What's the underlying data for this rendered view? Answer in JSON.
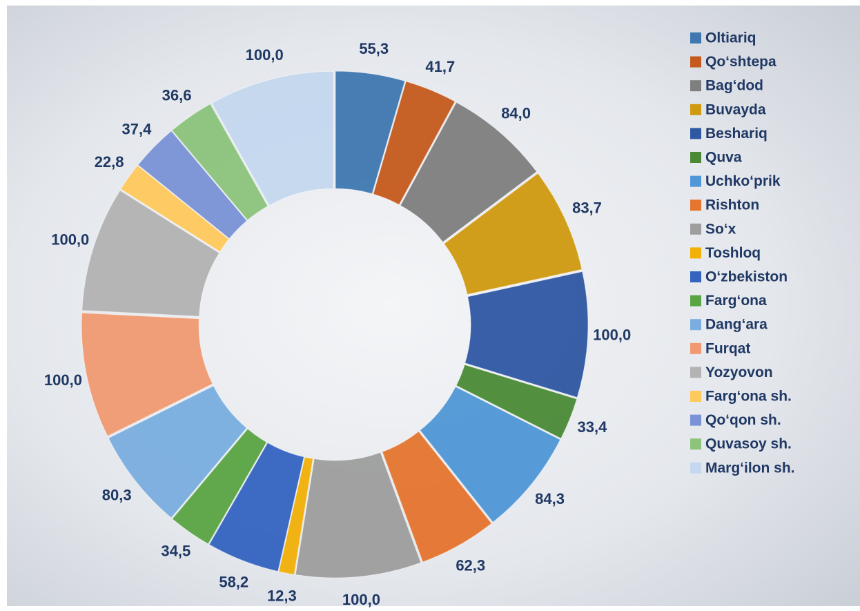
{
  "chart_data": {
    "type": "pie",
    "donut": true,
    "categories": [
      "Oltiariq",
      "Qo‘shtepa",
      "Bag‘dod",
      "Buvayda",
      "Beshariq",
      "Quva",
      "Uchko‘prik",
      "Rishton",
      "So‘x",
      "Toshloq",
      "O‘zbekiston",
      "Farg‘ona",
      "Dang‘ara",
      "Furqat",
      "Yozyovon",
      "Farg‘ona sh.",
      "Qo‘qon sh.",
      "Quvasoy sh.",
      "Marg‘ilon sh."
    ],
    "values": [
      55.3,
      41.7,
      84.0,
      83.7,
      100.0,
      33.4,
      84.3,
      62.3,
      100.0,
      12.3,
      58.2,
      34.5,
      80.3,
      100.0,
      100.0,
      22.8,
      37.4,
      36.6,
      100.0
    ],
    "value_labels": [
      "55,3",
      "41,7",
      "84,0",
      "83,7",
      "100,0",
      "33,4",
      "84,3",
      "62,3",
      "100,0",
      "12,3",
      "58,2",
      "34,5",
      "80,3",
      "100,0",
      "100,0",
      "22,8",
      "37,4",
      "36,6",
      "100,0"
    ],
    "colors": [
      "#3f78b0",
      "#c55a1e",
      "#7f7f7f",
      "#d09a10",
      "#2f58a3",
      "#4a8a36",
      "#4f97d6",
      "#e5752f",
      "#9e9e9e",
      "#f2b108",
      "#3464c0",
      "#5aa544",
      "#7aaee0",
      "#f19a72",
      "#b3b3b3",
      "#ffc95c",
      "#7b93d6",
      "#8cc47c",
      "#c5d8ef"
    ],
    "legend": "right"
  }
}
